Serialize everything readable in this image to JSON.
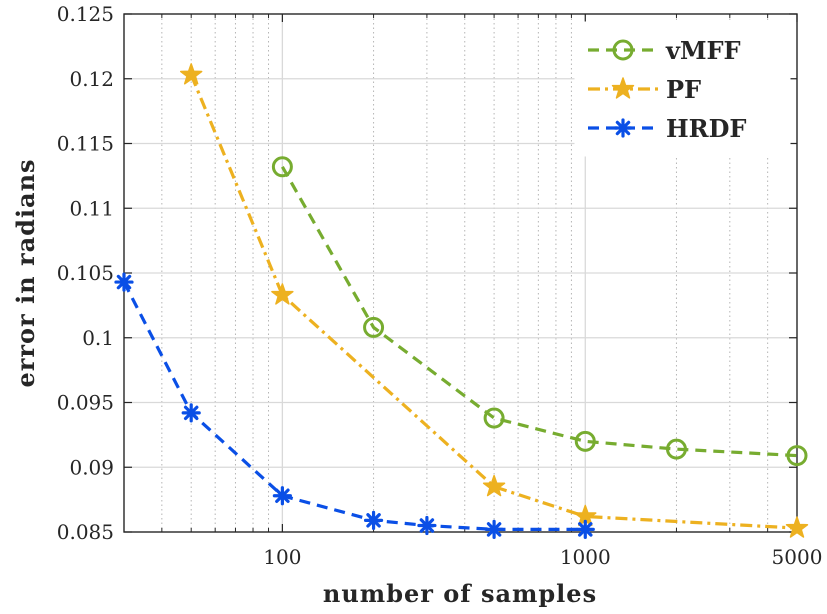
{
  "chart_data": {
    "type": "line",
    "xscale": "log",
    "xlabel": "number of samples",
    "ylabel": "error in radians",
    "xlim": [
      30,
      5000
    ],
    "ylim": [
      0.085,
      0.125
    ],
    "xticks": [
      100,
      1000,
      5000
    ],
    "xtick_labels": [
      "100",
      "1000",
      "5000"
    ],
    "yticks": [
      0.085,
      0.09,
      0.095,
      0.1,
      0.105,
      0.11,
      0.115,
      0.12,
      0.125
    ],
    "ytick_labels": [
      "0.085",
      "0.09",
      "0.095",
      "0.1",
      "0.105",
      "0.11",
      "0.115",
      "0.12",
      "0.125"
    ],
    "grid": true,
    "legend_position": "top-right",
    "series": [
      {
        "name": "vMFF",
        "color": "#77ac30",
        "line_style": "dashed",
        "marker": "circle",
        "x": [
          100,
          200,
          500,
          1000,
          2000,
          5000
        ],
        "y": [
          0.1132,
          0.1008,
          0.0938,
          0.092,
          0.0914,
          0.0909
        ]
      },
      {
        "name": "PF",
        "color": "#edb120",
        "line_style": "dash-dot",
        "marker": "star",
        "x": [
          50,
          100,
          500,
          1000,
          5000
        ],
        "y": [
          0.1203,
          0.1033,
          0.0885,
          0.0862,
          0.0853
        ]
      },
      {
        "name": "HRDF",
        "color": "#0a4fe6",
        "line_style": "dashed",
        "marker": "asterisk",
        "x": [
          30,
          50,
          100,
          200,
          300,
          500,
          1000
        ],
        "y": [
          0.1043,
          0.0942,
          0.0878,
          0.0859,
          0.0855,
          0.0852,
          0.0852
        ]
      }
    ]
  }
}
